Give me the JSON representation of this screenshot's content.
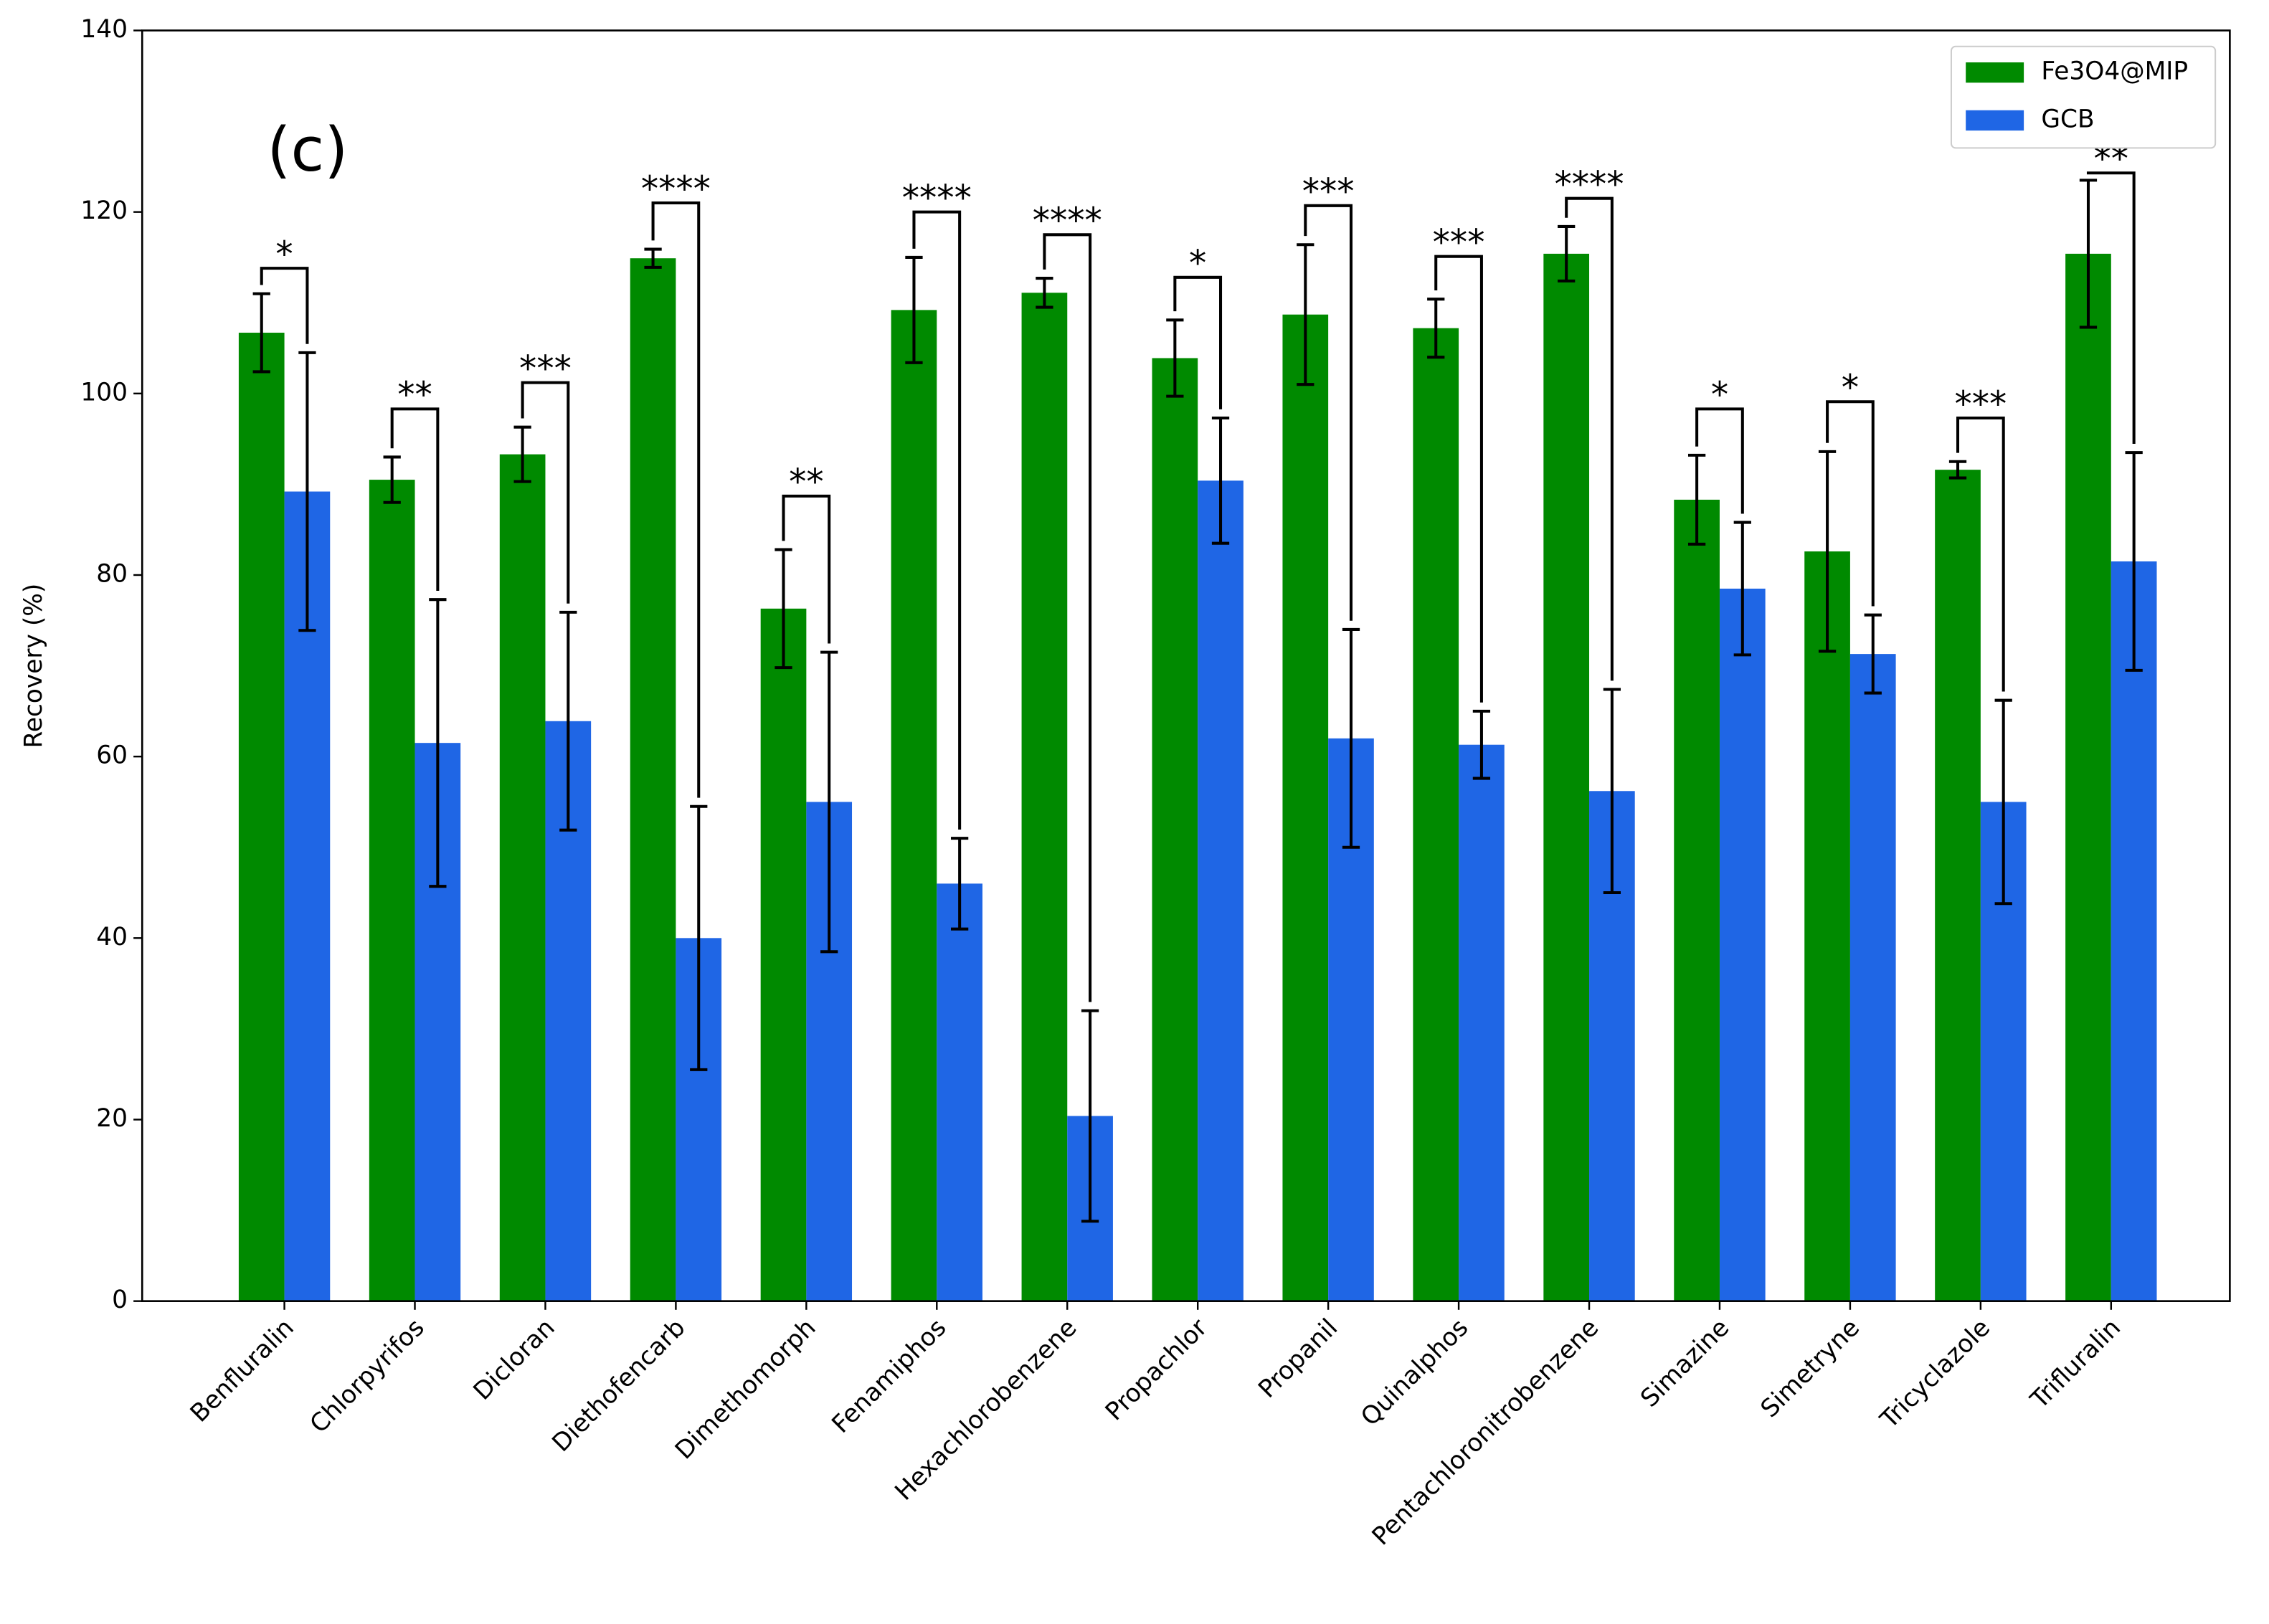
{
  "chart_data": {
    "type": "bar",
    "panel_label": "(c)",
    "y_label": "Recovery (%)",
    "categories": [
      "Benfluralin",
      "Chlorpyrifos",
      "Dicloran",
      "Diethofencarb",
      "Dimethomorph",
      "Fenamiphos",
      "Hexachlorobenzene",
      "Propachlor",
      "Propanil",
      "Quinalphos",
      "Pentachloronitrobenzene",
      "Simazine",
      "Simetryne",
      "Tricyclazole",
      "Trifluralin"
    ],
    "series": [
      {
        "name": "Fe3O4@MIP",
        "color": "#008a00",
        "values": [
          106.7,
          90.5,
          93.3,
          114.9,
          76.3,
          109.2,
          111.1,
          103.9,
          108.7,
          107.2,
          115.4,
          88.3,
          82.6,
          91.6,
          115.4
        ],
        "errors": [
          4.3,
          2.5,
          3.0,
          1.0,
          6.5,
          5.8,
          1.6,
          4.2,
          7.7,
          3.2,
          3.0,
          4.9,
          11.0,
          0.9,
          8.1
        ]
      },
      {
        "name": "GCB",
        "color": "#1f66e5",
        "values": [
          89.2,
          61.5,
          63.9,
          40.0,
          55.0,
          46.0,
          20.4,
          90.4,
          62.0,
          61.3,
          56.2,
          78.5,
          71.3,
          55.0,
          81.5
        ],
        "errors": [
          15.3,
          15.8,
          12.0,
          14.5,
          16.5,
          5.0,
          11.6,
          6.9,
          12.0,
          3.7,
          11.2,
          7.3,
          4.3,
          11.2,
          12.0
        ]
      }
    ],
    "significance": [
      {
        "text": "*",
        "y": 113.8
      },
      {
        "text": "**",
        "y": 98.3
      },
      {
        "text": "***",
        "y": 101.2
      },
      {
        "text": "****",
        "y": 121.0
      },
      {
        "text": "**",
        "y": 88.7
      },
      {
        "text": "****",
        "y": 120.0
      },
      {
        "text": "****",
        "y": 117.5
      },
      {
        "text": "*",
        "y": 112.8
      },
      {
        "text": "***",
        "y": 120.7
      },
      {
        "text": "***",
        "y": 115.1
      },
      {
        "text": "****",
        "y": 121.5
      },
      {
        "text": "*",
        "y": 98.3
      },
      {
        "text": "*",
        "y": 99.1
      },
      {
        "text": "***",
        "y": 97.3
      },
      {
        "text": "**",
        "y": 124.3
      }
    ],
    "ylim": [
      0,
      140
    ],
    "yticks": [
      0,
      20,
      40,
      60,
      80,
      100,
      120,
      140
    ],
    "grid": false,
    "legend": "upper right"
  }
}
